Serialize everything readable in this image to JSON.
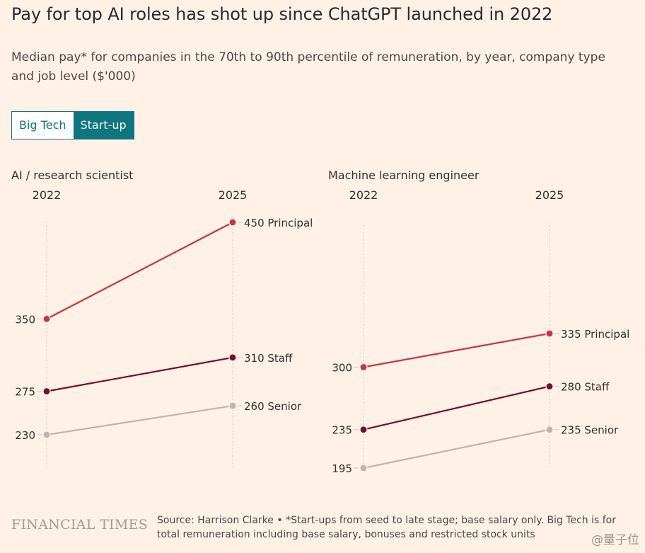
{
  "title": "Pay for top AI roles has shot up since ChatGPT launched in 2022",
  "subtitle": "Median pay* for companies in the 70th to 90th percentile of remuneration, by year, company type and job level ($'000)",
  "toggle": {
    "options": [
      "Big Tech",
      "Start-up"
    ],
    "selected": "Start-up"
  },
  "colors": {
    "Principal": "#cc3340",
    "Staff": "#7a0a2e",
    "Senior": "#bdb5ae",
    "accent": "#0d7680"
  },
  "chart_data": [
    {
      "type": "line",
      "title": "AI / research scientist",
      "x": [
        "2022",
        "2025"
      ],
      "series": [
        {
          "name": "Principal",
          "values": [
            350,
            450
          ]
        },
        {
          "name": "Staff",
          "values": [
            275,
            310
          ]
        },
        {
          "name": "Senior",
          "values": [
            230,
            260
          ]
        }
      ],
      "start_labels": [
        "350",
        "275",
        "230"
      ],
      "end_labels": [
        "450 Principal",
        "310 Staff",
        "260 Senior"
      ]
    },
    {
      "type": "line",
      "title": "Machine learning engineer",
      "x": [
        "2022",
        "2025"
      ],
      "series": [
        {
          "name": "Principal",
          "values": [
            300,
            335
          ]
        },
        {
          "name": "Staff",
          "values": [
            235,
            280
          ]
        },
        {
          "name": "Senior",
          "values": [
            195,
            235
          ]
        }
      ],
      "start_labels": [
        "300",
        "235",
        "195"
      ],
      "end_labels": [
        "335 Principal",
        "280 Staff",
        "235 Senior"
      ]
    }
  ],
  "footer": {
    "logo": "FINANCIAL TIMES",
    "source": "Source: Harrison Clarke • *Start-ups from seed to late stage; base salary only. Big Tech is for total remuneration including base salary, bonuses and restricted stock units"
  },
  "watermark": "@量子位"
}
